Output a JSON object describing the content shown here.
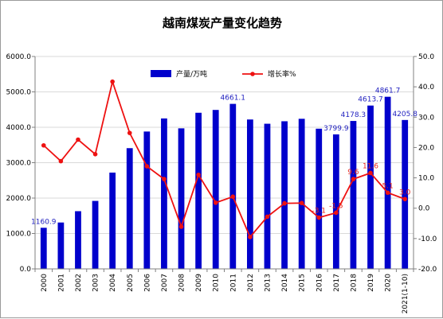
{
  "chart_data": {
    "type": "bar",
    "title": "越南煤炭产量变化趋势",
    "categories": [
      "2000",
      "2001",
      "2002",
      "2003",
      "2004",
      "2005",
      "2006",
      "2007",
      "2008",
      "2009",
      "2010",
      "2011",
      "2012",
      "2013",
      "2014",
      "2015",
      "2016",
      "2017",
      "2018",
      "2019",
      "2020",
      "2021(1-10)"
    ],
    "series": [
      {
        "name": "产量/万吨",
        "type": "bar",
        "axis": "left",
        "color": "#0000cc",
        "values": [
          1160.9,
          1310,
          1630,
          1920,
          2720,
          3410,
          3880,
          4250,
          3970,
          4410,
          4490,
          4661.1,
          4220,
          4100,
          4170,
          4240,
          3960,
          3799.9,
          4178.3,
          4613.7,
          4861.7,
          4205.8
        ]
      },
      {
        "name": "增长率%",
        "type": "line",
        "axis": "right",
        "color": "#ee1111",
        "values": [
          20.7,
          15.5,
          22.6,
          17.8,
          41.7,
          24.8,
          13.8,
          9.6,
          -6.1,
          11.0,
          1.8,
          3.8,
          -9.5,
          -2.8,
          1.6,
          1.7,
          -3.1,
          -1.5,
          9.6,
          11.6,
          5.1,
          3.0
        ]
      }
    ],
    "bar_labels": [
      {
        "index": 0,
        "text": "1160.9"
      },
      {
        "index": 11,
        "text": "4661.1"
      },
      {
        "index": 17,
        "text": "3799.9"
      },
      {
        "index": 18,
        "text": "4178.3"
      },
      {
        "index": 19,
        "text": "4613.7"
      },
      {
        "index": 20,
        "text": "4861.7"
      },
      {
        "index": 21,
        "text": "4205.8"
      }
    ],
    "line_labels": [
      {
        "index": 16,
        "text": "-3.1"
      },
      {
        "index": 17,
        "text": "-1.5"
      },
      {
        "index": 18,
        "text": "9.6"
      },
      {
        "index": 19,
        "text": "11.6"
      },
      {
        "index": 20,
        "text": "5.1"
      },
      {
        "index": 21,
        "text": "3.0"
      }
    ],
    "y_left": {
      "min": 0,
      "max": 6000,
      "step": 1000,
      "ticks": [
        "0.0",
        "1000.0",
        "2000.0",
        "3000.0",
        "4000.0",
        "5000.0",
        "6000.0"
      ]
    },
    "y_right": {
      "min": -20,
      "max": 50,
      "step": 10,
      "ticks": [
        "-20.0",
        "-10.0",
        "0.0",
        "10.0",
        "20.0",
        "30.0",
        "40.0",
        "50.0"
      ]
    },
    "xlabel": "",
    "ylabel": "",
    "grid": true,
    "legend": "top"
  }
}
